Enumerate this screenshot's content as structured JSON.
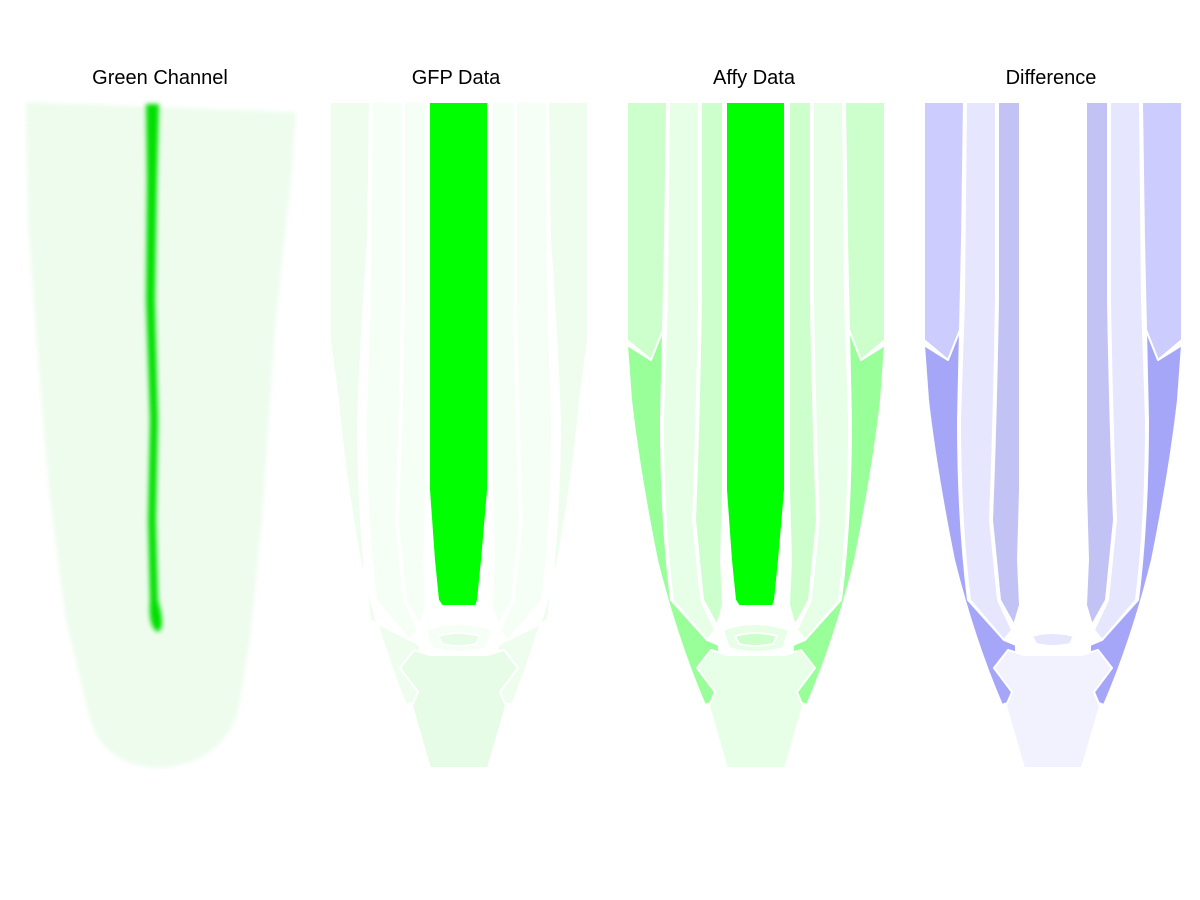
{
  "panels": [
    {
      "title": "Green Channel",
      "palette": "green"
    },
    {
      "title": "GFP Data",
      "palette": "green"
    },
    {
      "title": "Affy Data",
      "palette": "green"
    },
    {
      "title": "Difference",
      "palette": "blue"
    }
  ],
  "colors": {
    "green_channel_stripe": "#00e000",
    "green_channel_tissue": "#eefcee",
    "gfp_stele": "#00ff00",
    "gfp_outer": "#eefdee",
    "gfp_inner": "#f5fff5",
    "gfp_cap": "#e6fce6",
    "affy_stele": "#00ff00",
    "affy_upper_outer": "#ccffcc",
    "affy_lower_outer": "#99ff99",
    "affy_light": "#e6ffe6",
    "affy_mid": "#ccffcc",
    "affy_cap": "#e6ffe6",
    "diff_outer": "#ccccff",
    "diff_light": "#e6e6ff",
    "diff_mid": "#c2c2f5",
    "diff_strong": "#a6a6f8",
    "diff_cap": "#f2f2ff"
  }
}
